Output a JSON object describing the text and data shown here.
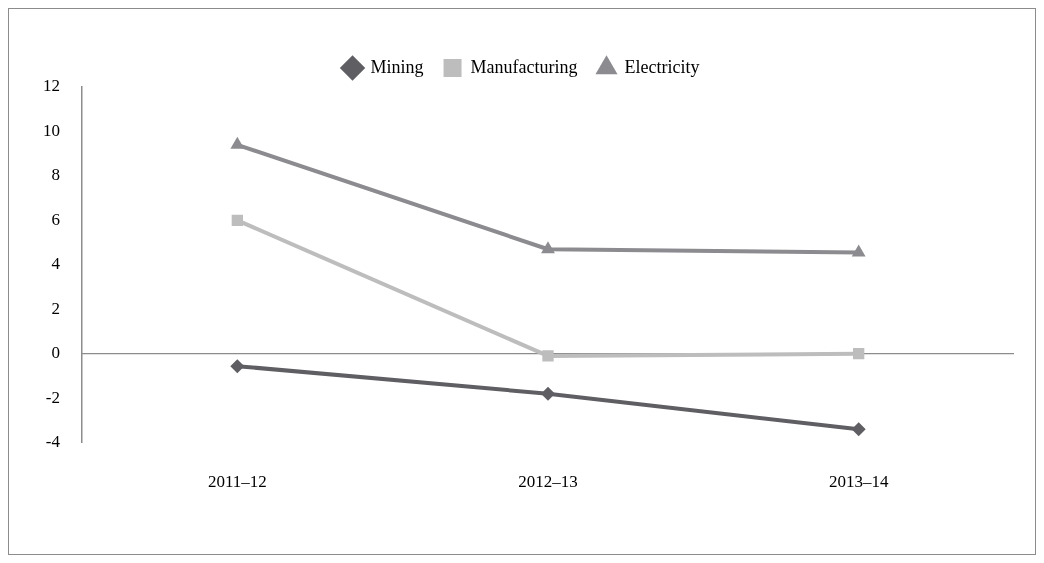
{
  "chart_data": {
    "type": "line",
    "categories": [
      "2011–12",
      "2012–13",
      "2013–14"
    ],
    "series": [
      {
        "name": "Mining",
        "color": "#5f5f63",
        "marker": "diamond",
        "values": [
          -0.56,
          -1.8,
          -3.4
        ]
      },
      {
        "name": "Manufacturing",
        "color": "#bdbdbd",
        "marker": "square",
        "values": [
          6.0,
          -0.1,
          0.0
        ]
      },
      {
        "name": "Electricity",
        "color": "#8c8c90",
        "marker": "triangle",
        "values": [
          9.4,
          4.7,
          4.55
        ]
      }
    ],
    "ylim": [
      -4,
      12
    ],
    "yticks": [
      -4,
      -2,
      0,
      2,
      4,
      6,
      8,
      10,
      12
    ],
    "grid": false,
    "ref_lines": [
      {
        "axis": "y",
        "value": 0,
        "color": "#8c8c8c"
      }
    ],
    "legend": "top",
    "line_style": "solid"
  }
}
